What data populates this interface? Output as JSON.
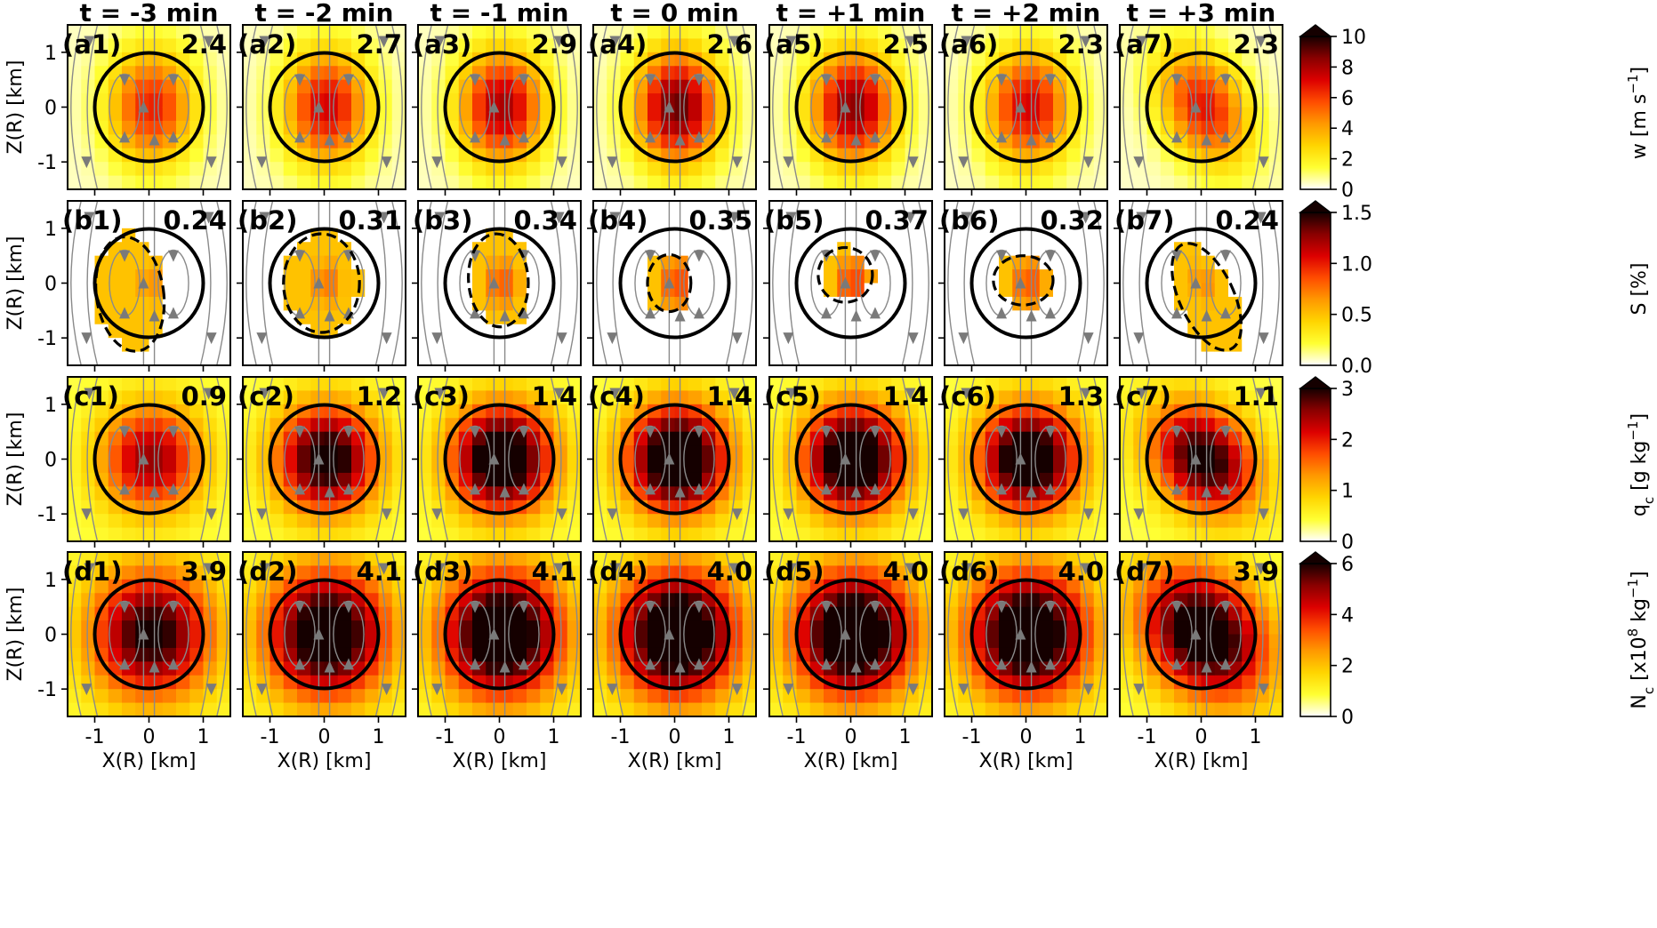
{
  "chart_data": {
    "type": "heatmap",
    "columns": [
      "t = -3 min",
      "t = -2 min",
      "t = -1 min",
      "t = 0 min",
      "t = +1 min",
      "t = +2 min",
      "t = +3 min"
    ],
    "rows": [
      {
        "row_id": "a",
        "panel_labels": [
          "(a1)",
          "(a2)",
          "(a3)",
          "(a4)",
          "(a5)",
          "(a6)",
          "(a7)"
        ],
        "panel_values": [
          "2.4",
          "2.7",
          "2.9",
          "2.6",
          "2.5",
          "2.3",
          "2.3"
        ],
        "colorbar_label_parts": [
          "w [m s",
          "−1",
          "]"
        ],
        "colorbar_ticks": [
          "0",
          "2",
          "4",
          "6",
          "8",
          "10"
        ],
        "colorbar_range": [
          0,
          10
        ],
        "dashed_contour": false
      },
      {
        "row_id": "b",
        "panel_labels": [
          "(b1)",
          "(b2)",
          "(b3)",
          "(b4)",
          "(b5)",
          "(b6)",
          "(b7)"
        ],
        "panel_values": [
          "0.24",
          "0.31",
          "0.34",
          "0.35",
          "0.37",
          "0.32",
          "0.24"
        ],
        "colorbar_label_parts": [
          "S [%]"
        ],
        "colorbar_ticks": [
          "0.0",
          "0.5",
          "1.0",
          "1.5"
        ],
        "colorbar_range": [
          0,
          1.5
        ],
        "dashed_contour": true
      },
      {
        "row_id": "c",
        "panel_labels": [
          "(c1)",
          "(c2)",
          "(c3)",
          "(c4)",
          "(c5)",
          "(c6)",
          "(c7)"
        ],
        "panel_values": [
          "0.9",
          "1.2",
          "1.4",
          "1.4",
          "1.4",
          "1.3",
          "1.1"
        ],
        "colorbar_label_parts": [
          "q",
          "c",
          " [g kg",
          "−1",
          "]"
        ],
        "colorbar_ticks": [
          "0",
          "1",
          "2",
          "3"
        ],
        "colorbar_range": [
          0,
          3
        ],
        "dashed_contour": false
      },
      {
        "row_id": "d",
        "panel_labels": [
          "(d1)",
          "(d2)",
          "(d3)",
          "(d4)",
          "(d5)",
          "(d6)",
          "(d7)"
        ],
        "panel_values": [
          "3.9",
          "4.1",
          "4.1",
          "4.0",
          "4.0",
          "4.0",
          "3.9"
        ],
        "colorbar_label_parts": [
          "N",
          "c",
          " [x10",
          "8",
          " kg",
          "−1",
          "]"
        ],
        "colorbar_ticks": [
          "0",
          "2",
          "4",
          "6"
        ],
        "colorbar_range": [
          0,
          6
        ],
        "dashed_contour": false
      }
    ],
    "xlabel": "X(R) [km]",
    "ylabel": "Z(R) [km]",
    "x_ticks": [
      "-1",
      "0",
      "1"
    ],
    "y_ticks": [
      "1",
      "0",
      "-1"
    ],
    "xlim": [
      -1.5,
      1.5
    ],
    "ylim": [
      -1.5,
      1.5
    ],
    "colormap": [
      "#ffffff",
      "#ffff33",
      "#ffd500",
      "#ff9900",
      "#ff4d00",
      "#dd0000",
      "#8a0000",
      "#150000"
    ]
  }
}
